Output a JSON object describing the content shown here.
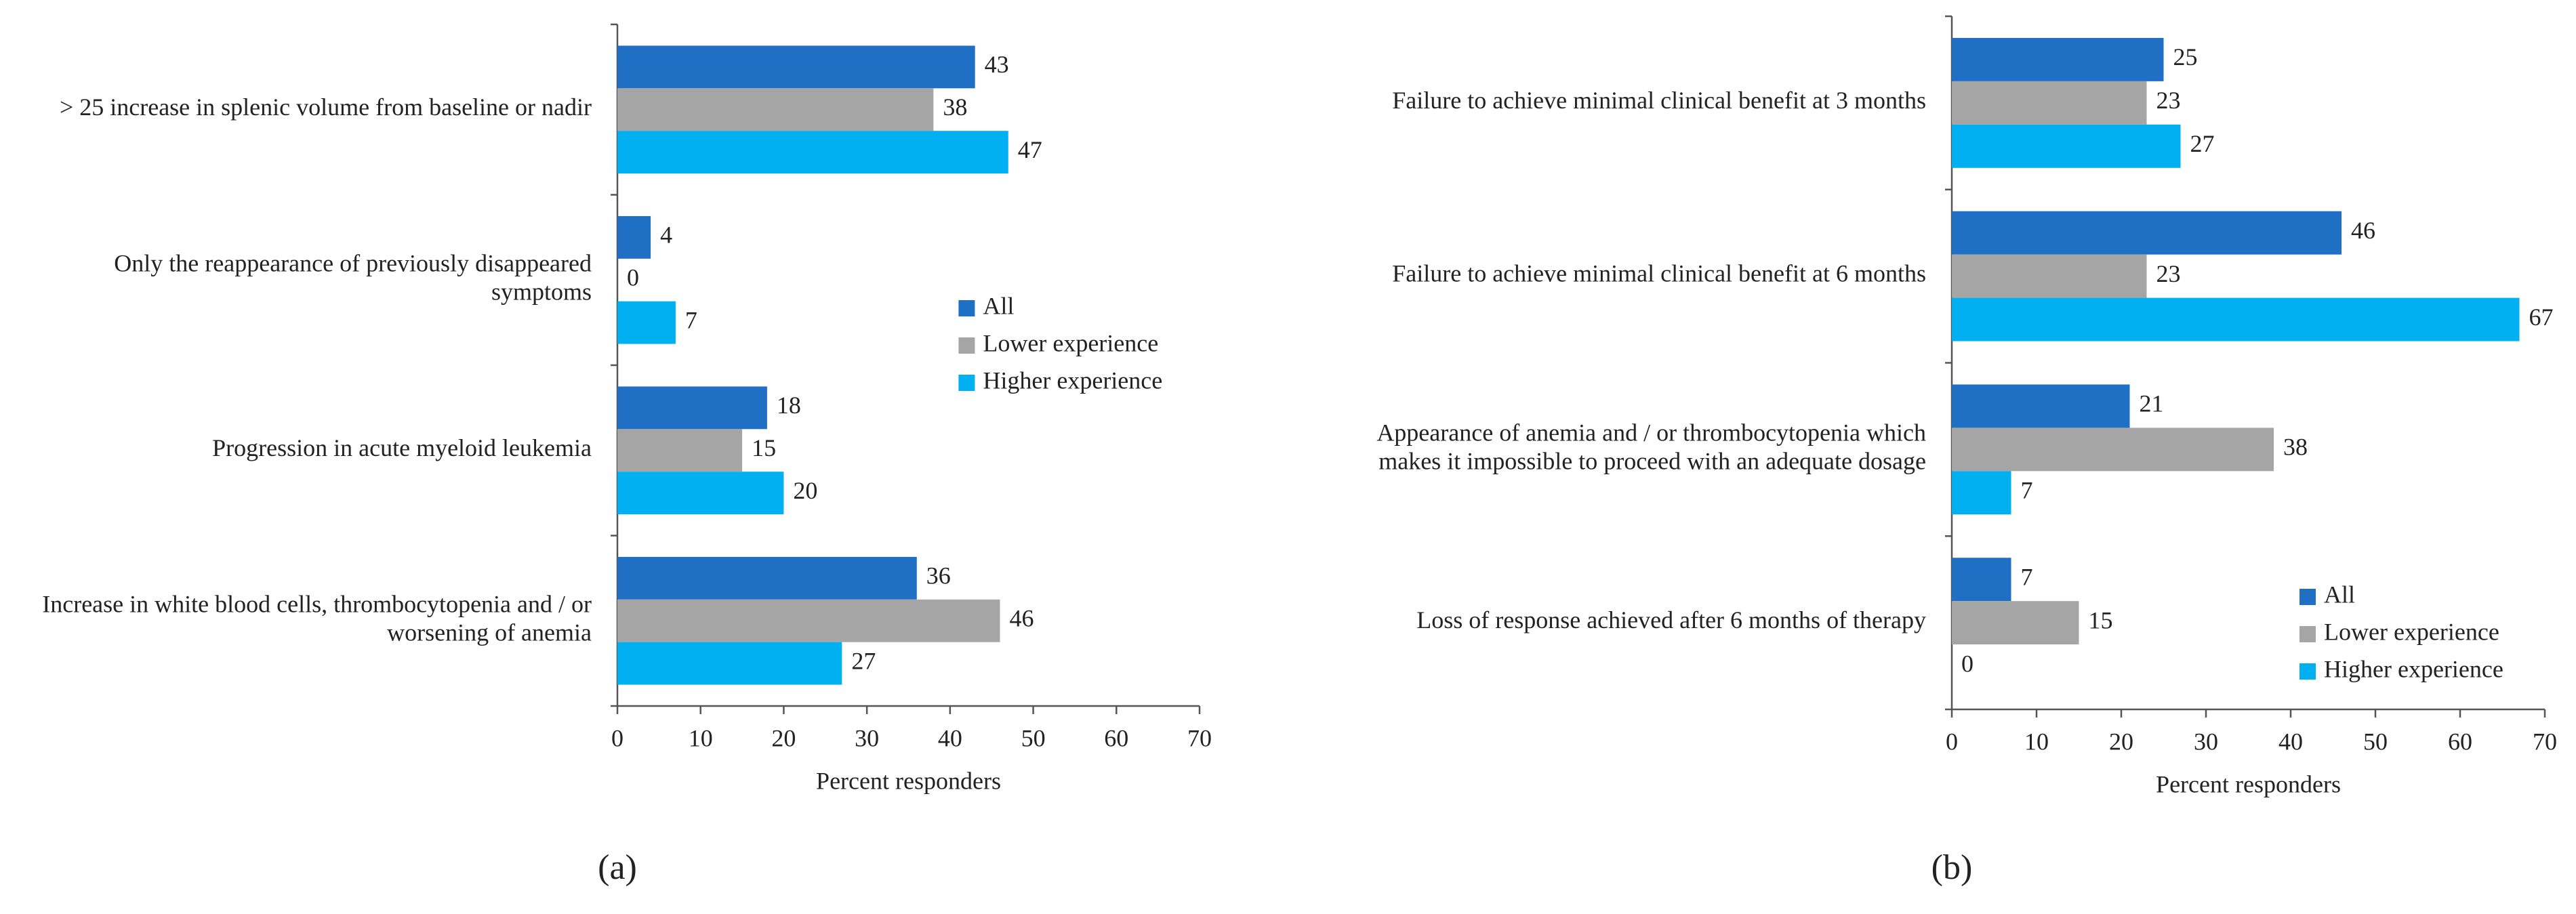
{
  "chart_data": [
    {
      "type": "bar",
      "orientation": "horizontal",
      "label": "(a)",
      "categories": [
        "> 25 increase in splenic volume from baseline or nadir",
        "Only the reappearance of previously disappeared symptoms",
        "Progression in acute myeloid leukemia",
        "Increase in white blood cells, thrombocytopenia and / or worsening of anemia"
      ],
      "series": [
        {
          "name": "All",
          "color": "#1f6fc5",
          "values": [
            43,
            4,
            18,
            36
          ]
        },
        {
          "name": "Lower experience",
          "color": "#a5a5a5",
          "values": [
            38,
            0,
            15,
            46
          ]
        },
        {
          "name": "Higher experience",
          "color": "#00b0f0",
          "values": [
            47,
            7,
            20,
            27
          ]
        }
      ],
      "xlabel": "Percent responders",
      "xlim": [
        0,
        70
      ],
      "xticks": [
        0,
        10,
        20,
        30,
        40,
        50,
        60,
        70
      ],
      "legend": "right"
    },
    {
      "type": "bar",
      "orientation": "horizontal",
      "label": "(b)",
      "categories": [
        "Failure to achieve minimal clinical benefit at 3 months",
        "Failure to achieve minimal clinical benefit at 6 months",
        "Appearance of anemia and / or thrombocytopenia which makes it impossible to proceed with an adequate dosage",
        "Loss of response achieved after 6 months of therapy"
      ],
      "series": [
        {
          "name": "All",
          "color": "#1f6fc5",
          "values": [
            25,
            46,
            21,
            7
          ]
        },
        {
          "name": "Lower experience",
          "color": "#a5a5a5",
          "values": [
            23,
            23,
            38,
            15
          ]
        },
        {
          "name": "Higher experience",
          "color": "#00b0f0",
          "values": [
            27,
            67,
            7,
            0
          ]
        }
      ],
      "xlabel": "Percent responders",
      "xlim": [
        0,
        70
      ],
      "xticks": [
        0,
        10,
        20,
        30,
        40,
        50,
        60,
        70
      ],
      "legend": "lower right"
    }
  ]
}
